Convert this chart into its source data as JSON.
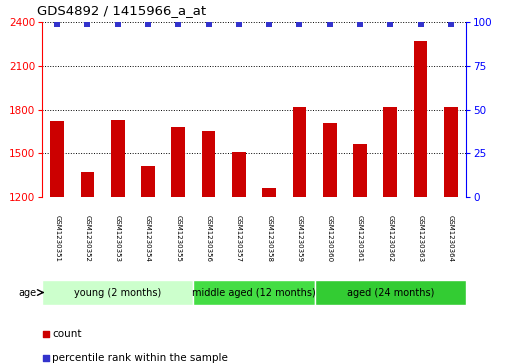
{
  "title": "GDS4892 / 1415966_a_at",
  "samples": [
    "GSM1230351",
    "GSM1230352",
    "GSM1230353",
    "GSM1230354",
    "GSM1230355",
    "GSM1230356",
    "GSM1230357",
    "GSM1230358",
    "GSM1230359",
    "GSM1230360",
    "GSM1230361",
    "GSM1230362",
    "GSM1230363",
    "GSM1230364"
  ],
  "counts": [
    1720,
    1370,
    1730,
    1410,
    1680,
    1650,
    1510,
    1260,
    1820,
    1710,
    1565,
    1820,
    2270,
    1820
  ],
  "percentile_ranks": [
    99,
    99,
    99,
    99,
    99,
    99,
    99,
    99,
    99,
    99,
    99,
    99,
    99,
    99
  ],
  "bar_color": "#cc0000",
  "dot_color": "#3333cc",
  "ylim_left": [
    1200,
    2400
  ],
  "ylim_right": [
    0,
    100
  ],
  "yticks_left": [
    1200,
    1500,
    1800,
    2100,
    2400
  ],
  "yticks_right": [
    0,
    25,
    50,
    75,
    100
  ],
  "groups": [
    {
      "label": "young (2 months)",
      "start": 0,
      "end": 5,
      "color": "#ccffcc"
    },
    {
      "label": "middle aged (12 months)",
      "start": 5,
      "end": 9,
      "color": "#44dd44"
    },
    {
      "label": "aged (24 months)",
      "start": 9,
      "end": 14,
      "color": "#33cc33"
    }
  ],
  "group_label_prefix": "age",
  "xticklabel_bg": "#cccccc",
  "legend_count_label": "count",
  "legend_percentile_label": "percentile rank within the sample",
  "bar_width": 0.45
}
